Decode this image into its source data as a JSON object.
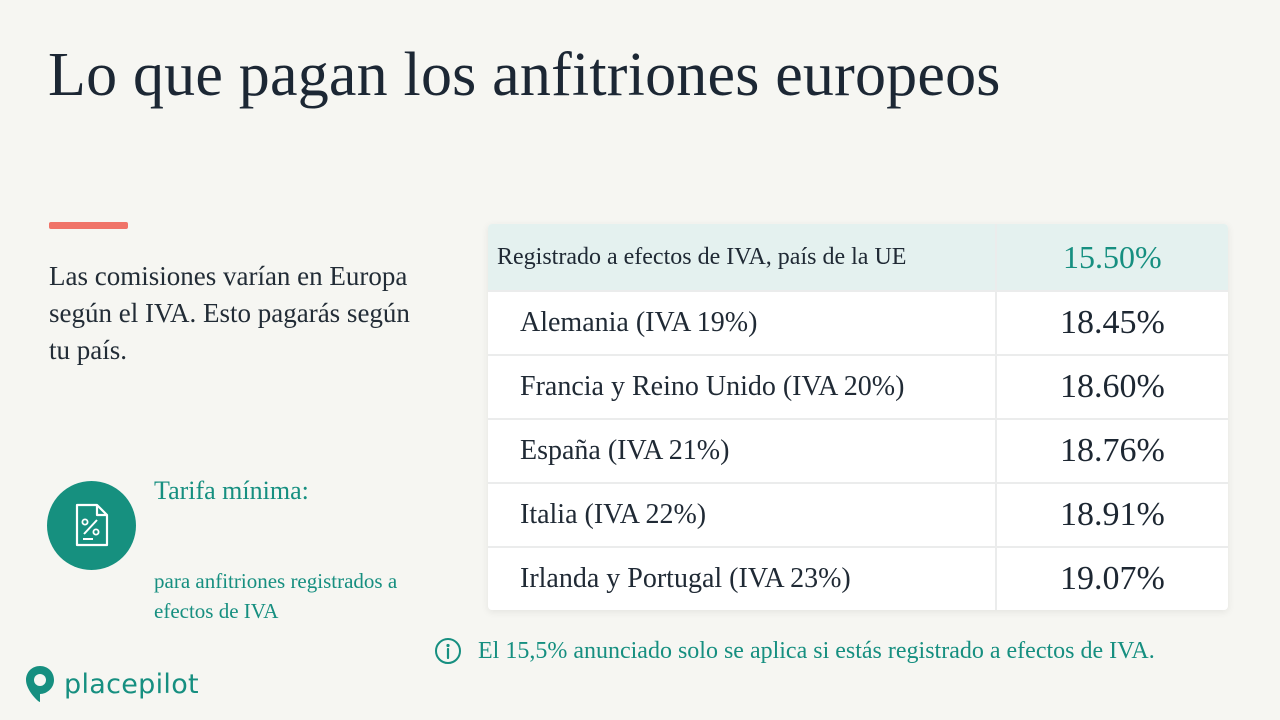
{
  "slide": {
    "title": "Lo que pagan los anfitriones europeos",
    "intro": "Las comisiones varían en Europa según el IVA. Esto pagarás según tu país.",
    "min_fee_label": "Tarifa mínima:",
    "min_fee_sub": "para anfitriones registrados a efectos de IVA",
    "note": "El 15,5% anunciado solo se aplica si estás registrado a efectos de IVA.",
    "brand": {
      "part1": "place",
      "part2": "pilot"
    },
    "colors": {
      "accent": "#f07368",
      "teal": "#168f80",
      "highlight_bg": "#e4f1ef",
      "background": "#f6f6f2"
    },
    "icons": {
      "fee": "percent-document-icon",
      "note": "info-icon",
      "brand": "location-pin-icon"
    }
  },
  "rates": [
    {
      "label": "Registrado a efectos de IVA, país de la UE",
      "value": "15.50%"
    },
    {
      "label": "Alemania (IVA 19%)",
      "value": "18.45%"
    },
    {
      "label": "Francia y Reino Unido (IVA 20%)",
      "value": "18.60%"
    },
    {
      "label": "España (IVA 21%)",
      "value": "18.76%"
    },
    {
      "label": "Italia (IVA 22%)",
      "value": "18.91%"
    },
    {
      "label": "Irlanda y Portugal (IVA 23%)",
      "value": "19.07%"
    }
  ]
}
